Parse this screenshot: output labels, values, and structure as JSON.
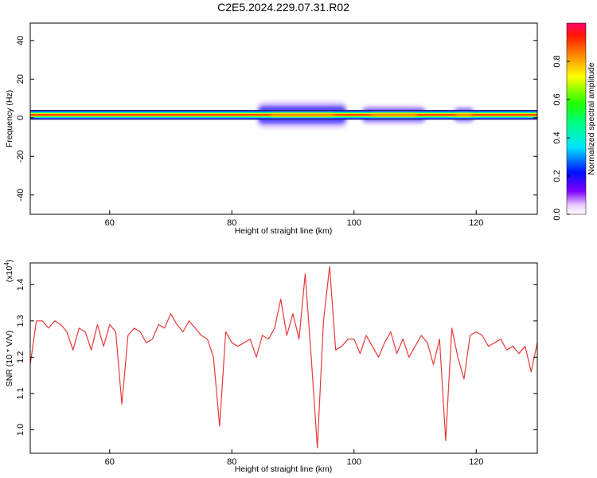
{
  "figure": {
    "title": "C2E5.2024.229.07.31.R02"
  },
  "chart_data": [
    {
      "type": "heatmap",
      "xlabel": "Height of straight line (km)",
      "ylabel": "Frequency (Hz)",
      "xlim": [
        47,
        130
      ],
      "ylim": [
        -50,
        49
      ],
      "x_ticks": [
        "60",
        "80",
        "100",
        "120"
      ],
      "y_ticks": [
        "40",
        "20",
        "0",
        "-20",
        "-40"
      ],
      "band_center_hz": 1.5,
      "band_halfwidth_hz": 2.5,
      "enhanced_regions": [
        {
          "x_from": 84,
          "x_to": 99,
          "halfwidth_hz": 7,
          "peak": 0.85
        },
        {
          "x_from": 101,
          "x_to": 112,
          "halfwidth_hz": 5,
          "peak": 0.7
        },
        {
          "x_from": 116,
          "x_to": 120,
          "halfwidth_hz": 4.5,
          "peak": 0.75
        }
      ]
    },
    {
      "type": "colorbar",
      "label": "Normalized spectral amplitude",
      "range": [
        0,
        1
      ],
      "ticks": [
        "0.0",
        "0.2",
        "0.4",
        "0.6",
        "0.8"
      ]
    },
    {
      "type": "line",
      "xlabel": "Height of straight line (km)",
      "ylabel": "SNR (10 * V/V)",
      "exponent_label_base": "(x10",
      "exponent_label_power": "4",
      "exponent_label_end": ")",
      "xlim": [
        47,
        130
      ],
      "ylim": [
        0.935,
        1.46
      ],
      "x_ticks": [
        "60",
        "80",
        "100",
        "120"
      ],
      "y_ticks": [
        "1.4",
        "1.3",
        "1.2",
        "1.1",
        "1.0"
      ],
      "line_color": "#e8393a",
      "series": [
        {
          "x": [
            47,
            48,
            49,
            50,
            51,
            52,
            53,
            54,
            55,
            56,
            57,
            58,
            59,
            60,
            61,
            62,
            63,
            64,
            65,
            66,
            67,
            68,
            69,
            70,
            71,
            72,
            73,
            74,
            75,
            76,
            77,
            78,
            79,
            80,
            81,
            82,
            83,
            84,
            85,
            86,
            87,
            88,
            89,
            90,
            91,
            92,
            93,
            94,
            95,
            96,
            97,
            98,
            99,
            100,
            101,
            102,
            103,
            104,
            105,
            106,
            107,
            108,
            109,
            110,
            111,
            112,
            113,
            114,
            115,
            116,
            117,
            118,
            119,
            120,
            121,
            122,
            123,
            124,
            125,
            126,
            127,
            128,
            129,
            130
          ],
          "values": [
            1.18,
            1.3,
            1.3,
            1.28,
            1.3,
            1.29,
            1.27,
            1.22,
            1.28,
            1.27,
            1.22,
            1.29,
            1.23,
            1.29,
            1.27,
            1.07,
            1.26,
            1.28,
            1.27,
            1.24,
            1.25,
            1.29,
            1.28,
            1.32,
            1.29,
            1.27,
            1.3,
            1.28,
            1.26,
            1.25,
            1.2,
            1.01,
            1.27,
            1.24,
            1.23,
            1.24,
            1.25,
            1.2,
            1.26,
            1.25,
            1.28,
            1.36,
            1.26,
            1.32,
            1.25,
            1.43,
            1.2,
            0.95,
            1.3,
            1.45,
            1.22,
            1.23,
            1.25,
            1.25,
            1.21,
            1.26,
            1.23,
            1.2,
            1.24,
            1.27,
            1.21,
            1.25,
            1.2,
            1.23,
            1.26,
            1.24,
            1.18,
            1.25,
            0.97,
            1.28,
            1.2,
            1.14,
            1.26,
            1.27,
            1.26,
            1.23,
            1.24,
            1.25,
            1.22,
            1.23,
            1.21,
            1.23,
            1.16,
            1.24
          ]
        }
      ]
    }
  ]
}
